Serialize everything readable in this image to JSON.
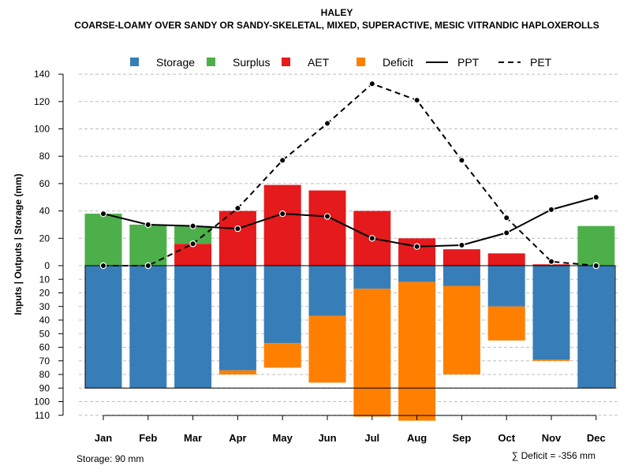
{
  "chart_data": {
    "type": "bar",
    "title": "HALEY",
    "subtitle": "COARSE-LOAMY OVER SANDY OR SANDY-SKELETAL, MIXED, SUPERACTIVE, MESIC VITRANDIC HAPLOXEROLLS",
    "ylabel": "Inputs | Outputs | Storage    (mm)",
    "ylim": [
      -110,
      140
    ],
    "y_ticks_upper": [
      0,
      20,
      40,
      60,
      80,
      100,
      120,
      140
    ],
    "y_ticks_lower": [
      10,
      20,
      30,
      40,
      50,
      60,
      70,
      80,
      90,
      100,
      110
    ],
    "categories": [
      "Jan",
      "Feb",
      "Mar",
      "Apr",
      "May",
      "Jun",
      "Jul",
      "Aug",
      "Sep",
      "Oct",
      "Nov",
      "Dec"
    ],
    "legend": [
      "Storage",
      "Surplus",
      "AET",
      "Deficit",
      "PPT",
      "PET"
    ],
    "colors": {
      "storage": "#377eb8",
      "surplus": "#4daf4a",
      "aet": "#e41a1c",
      "deficit": "#ff7f00"
    },
    "series_above": {
      "aet": [
        0,
        0,
        16,
        40,
        59,
        55,
        40,
        20,
        12,
        9,
        1,
        0
      ],
      "surplus": [
        38,
        30,
        13,
        0,
        0,
        0,
        0,
        0,
        0,
        0,
        0,
        29
      ]
    },
    "series_below": {
      "storage": [
        90,
        90,
        90,
        77,
        57,
        37,
        17,
        12,
        15,
        30,
        69,
        90
      ],
      "deficit": [
        0,
        0,
        0,
        3,
        18,
        49,
        94,
        102,
        65,
        25,
        1,
        0
      ]
    },
    "lines": {
      "ppt": [
        38,
        30,
        29,
        27,
        38,
        36,
        20,
        14,
        15,
        24,
        41,
        50
      ],
      "pet": [
        0,
        0,
        16,
        42,
        77,
        104,
        133,
        121,
        77,
        35,
        3,
        0
      ]
    },
    "storage_capacity": 90,
    "footer_left": "Storage: 90 mm",
    "footer_right": "∑ Deficit = -356 mm"
  }
}
